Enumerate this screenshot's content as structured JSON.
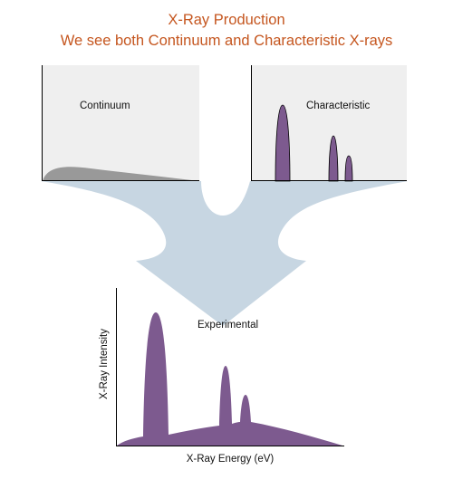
{
  "title": {
    "line1": "X-Ray Production",
    "line2": "We see both Continuum and Characteristic X-rays"
  },
  "panels": {
    "continuum": {
      "label": "Continuum"
    },
    "characteristic": {
      "label": "Characteristic"
    },
    "experimental": {
      "label": "Experimental",
      "xlabel": "X-Ray Energy (eV)",
      "ylabel": "X-Ray Intensity"
    }
  },
  "colors": {
    "title": "#c5561f",
    "panel_background": "#efefef",
    "arrow": "#c7d6e2",
    "continuum_fill": "#999999",
    "peak_fill": "#7d5a8f"
  }
}
